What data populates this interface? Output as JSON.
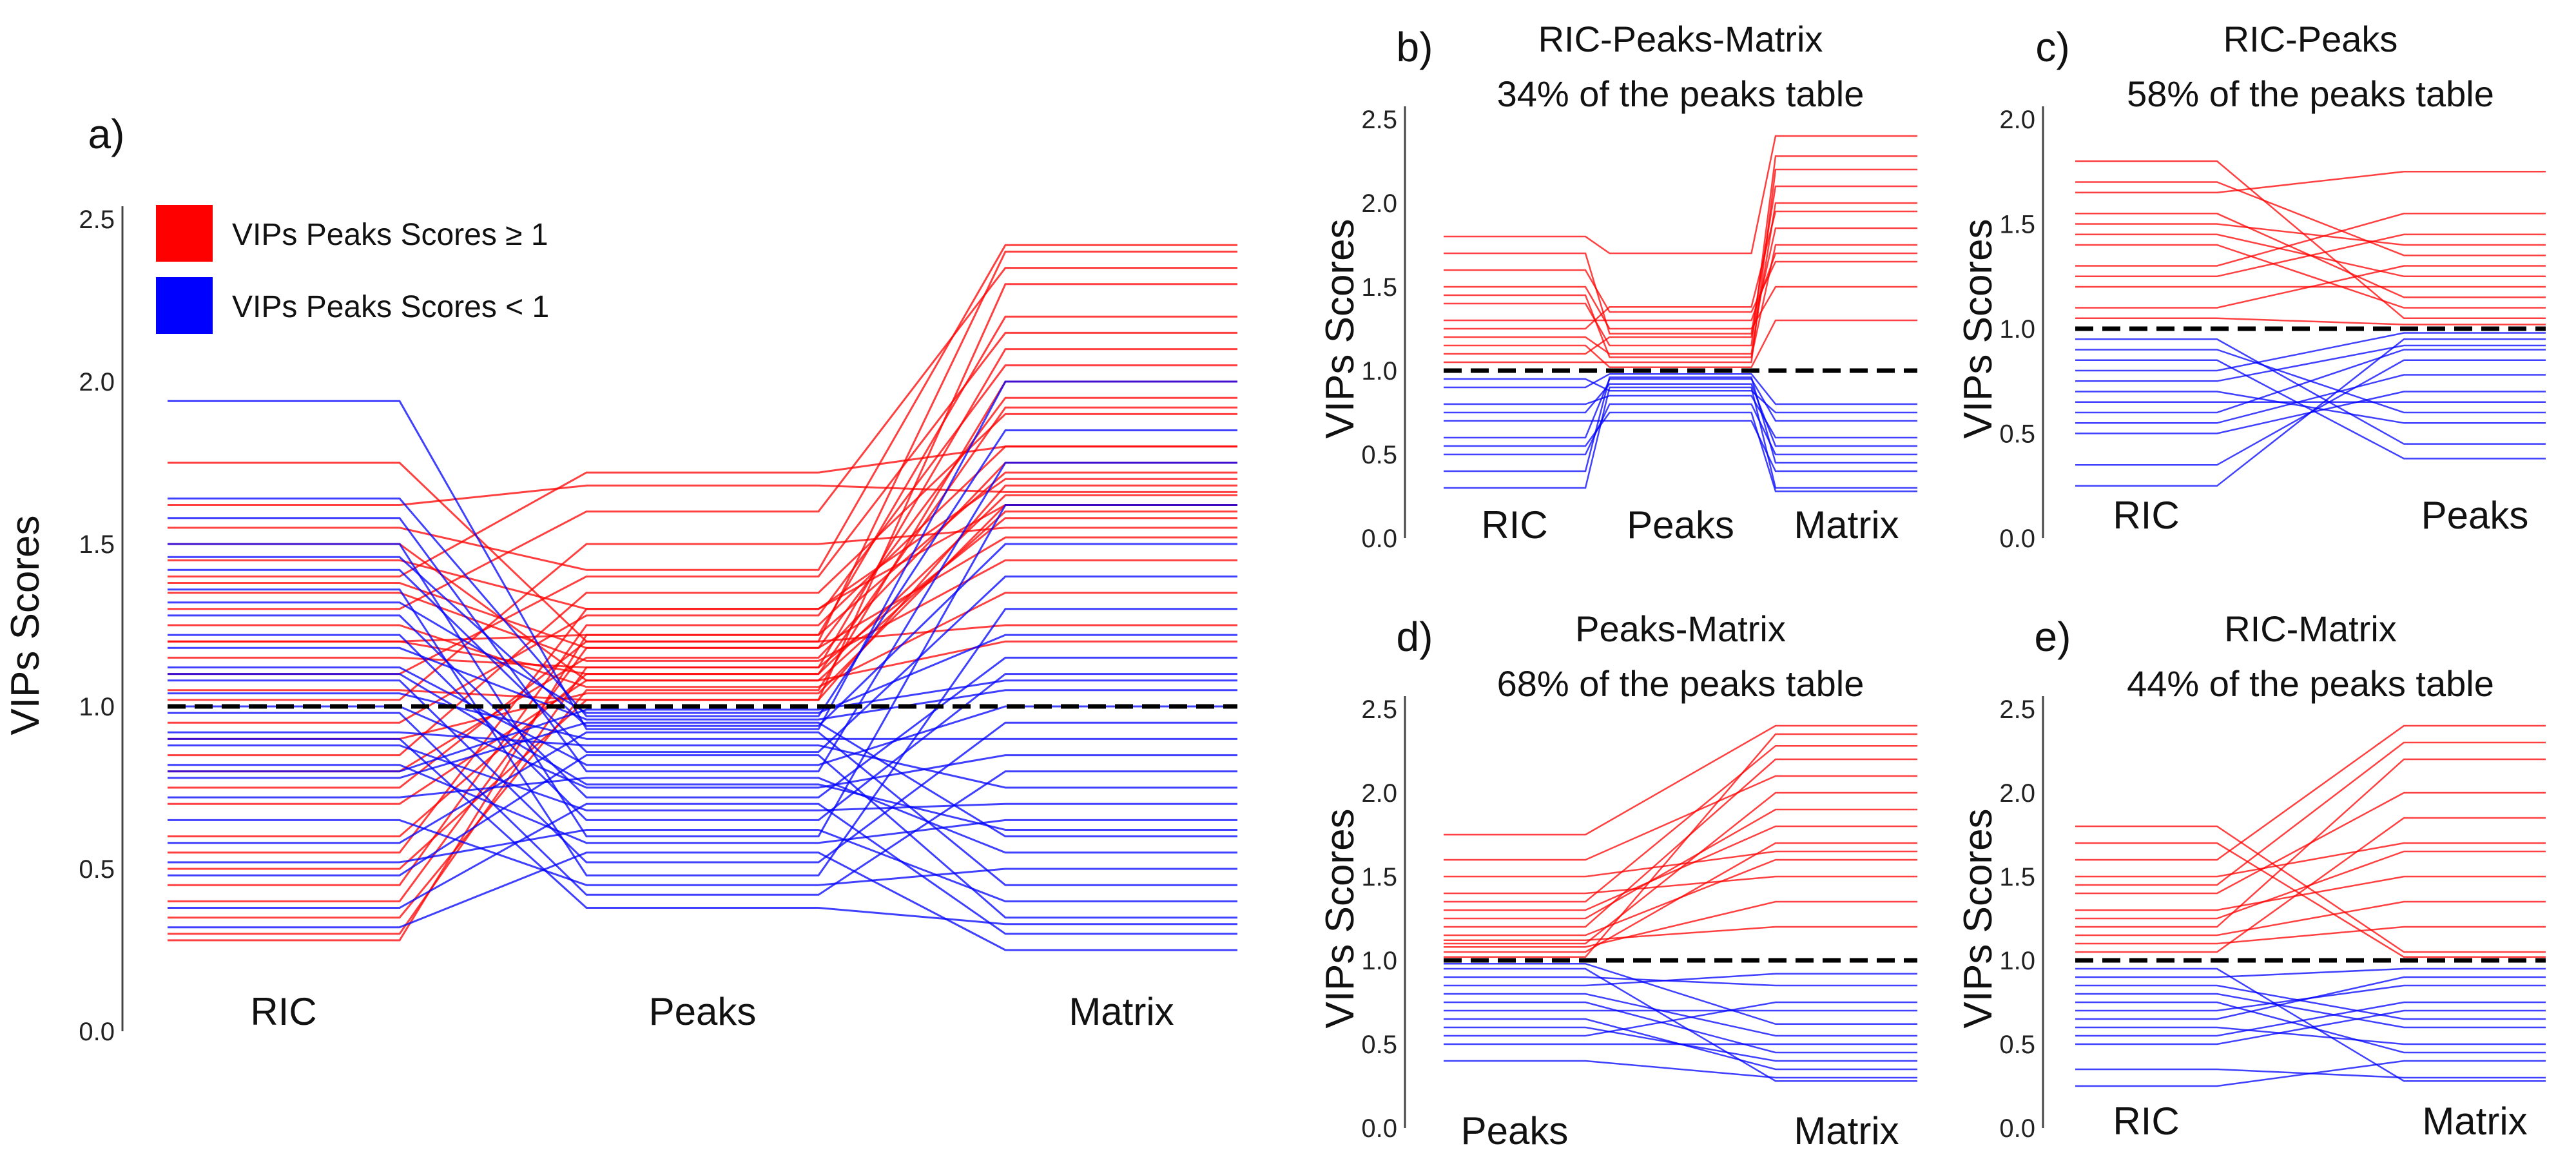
{
  "colors": {
    "high": "#ff0000",
    "low": "#0000ff",
    "threshold_line": "#000000",
    "axis": "#444444"
  },
  "legend": {
    "high_label": "VIPs Peaks Scores ≥ 1",
    "low_label": "VIPs Peaks Scores < 1"
  },
  "chart_data": [
    {
      "id": "a",
      "panel_letter": "a)",
      "title": "",
      "subtitle": "",
      "type": "parallel-coordinates",
      "ylabel": "VIPs Scores",
      "ylim": [
        0,
        2.5
      ],
      "yticks": [
        "0.0",
        "0.5",
        "1.0",
        "1.5",
        "2.0",
        "2.5"
      ],
      "threshold": 1.0,
      "categories": [
        "RIC",
        "Peaks",
        "Matrix"
      ],
      "color_rule": "Peaks value >= 1 red, < 1 blue",
      "series": [
        {
          "values": [
            0.28,
            1.22,
            2.2
          ]
        },
        {
          "values": [
            0.3,
            1.12,
            2.1
          ]
        },
        {
          "values": [
            0.35,
            1.05,
            2.0
          ]
        },
        {
          "values": [
            0.4,
            1.18,
            1.95
          ]
        },
        {
          "values": [
            0.45,
            1.25,
            1.8
          ]
        },
        {
          "values": [
            0.5,
            1.02,
            2.3
          ]
        },
        {
          "values": [
            0.55,
            1.3,
            1.7
          ]
        },
        {
          "values": [
            0.6,
            1.1,
            1.65
          ]
        },
        {
          "values": [
            0.7,
            1.08,
            1.6
          ]
        },
        {
          "values": [
            0.75,
            1.2,
            2.4
          ]
        },
        {
          "values": [
            0.8,
            1.15,
            1.75
          ]
        },
        {
          "values": [
            0.85,
            1.35,
            1.9
          ]
        },
        {
          "values": [
            0.9,
            1.04,
            1.62
          ]
        },
        {
          "values": [
            0.95,
            1.28,
            2.05
          ]
        },
        {
          "values": [
            1.02,
            1.5,
            1.55
          ]
        },
        {
          "values": [
            1.05,
            1.02,
            1.68
          ]
        },
        {
          "values": [
            1.1,
            1.4,
            2.15
          ]
        },
        {
          "values": [
            1.15,
            1.12,
            1.58
          ]
        },
        {
          "values": [
            1.2,
            1.22,
            1.72
          ]
        },
        {
          "values": [
            1.25,
            1.06,
            1.35
          ]
        },
        {
          "values": [
            1.3,
            1.6,
            2.35
          ]
        },
        {
          "values": [
            1.35,
            1.14,
            1.45
          ]
        },
        {
          "values": [
            1.4,
            1.72,
            1.8
          ]
        },
        {
          "values": [
            1.45,
            1.3,
            1.62
          ]
        },
        {
          "values": [
            1.5,
            1.08,
            1.2
          ]
        },
        {
          "values": [
            1.55,
            1.42,
            2.42
          ]
        },
        {
          "values": [
            1.62,
            1.68,
            1.66
          ]
        },
        {
          "values": [
            1.75,
            1.2,
            1.25
          ]
        },
        {
          "values": [
            1.2,
            1.1,
            1.92
          ]
        },
        {
          "values": [
            1.38,
            1.18,
            1.52
          ]
        },
        {
          "values": [
            0.32,
            0.55,
            0.25
          ]
        },
        {
          "values": [
            0.38,
            0.7,
            0.3
          ]
        },
        {
          "values": [
            0.48,
            0.85,
            0.35
          ]
        },
        {
          "values": [
            0.52,
            0.62,
            0.4
          ]
        },
        {
          "values": [
            0.58,
            0.92,
            0.45
          ]
        },
        {
          "values": [
            0.65,
            0.45,
            0.5
          ]
        },
        {
          "values": [
            0.72,
            0.78,
            0.55
          ]
        },
        {
          "values": [
            0.78,
            0.95,
            0.6
          ]
        },
        {
          "values": [
            0.82,
            0.58,
            0.65
          ]
        },
        {
          "values": [
            0.88,
            0.68,
            0.7
          ]
        },
        {
          "values": [
            0.92,
            0.88,
            0.75
          ]
        },
        {
          "values": [
            0.98,
            0.42,
            0.8
          ]
        },
        {
          "values": [
            1.0,
            0.75,
            0.85
          ]
        },
        {
          "values": [
            1.04,
            0.9,
            0.9
          ]
        },
        {
          "values": [
            1.08,
            0.52,
            0.95
          ]
        },
        {
          "values": [
            1.12,
            0.82,
            1.0
          ]
        },
        {
          "values": [
            1.18,
            0.96,
            1.05
          ]
        },
        {
          "values": [
            1.22,
            0.65,
            1.1
          ]
        },
        {
          "values": [
            1.28,
            0.72,
            1.15
          ]
        },
        {
          "values": [
            1.32,
            0.98,
            1.22
          ]
        },
        {
          "values": [
            1.36,
            0.48,
            1.3
          ]
        },
        {
          "values": [
            1.42,
            0.86,
            1.4
          ]
        },
        {
          "values": [
            1.46,
            0.94,
            1.5
          ]
        },
        {
          "values": [
            1.5,
            0.6,
            1.62
          ]
        },
        {
          "values": [
            1.58,
            0.8,
            1.75
          ]
        },
        {
          "values": [
            1.64,
            0.97,
            1.85
          ]
        },
        {
          "values": [
            1.94,
            0.93,
            2.0
          ]
        },
        {
          "values": [
            0.8,
            0.99,
            1.08
          ]
        },
        {
          "values": [
            0.9,
            0.38,
            0.33
          ]
        },
        {
          "values": [
            1.1,
            0.76,
            0.62
          ]
        }
      ]
    },
    {
      "id": "b",
      "panel_letter": "b)",
      "title": "RIC-Peaks-Matrix",
      "subtitle": "34% of the peaks table",
      "type": "parallel-coordinates",
      "ylabel": "VIPs Scores",
      "ylim": [
        0,
        2.5
      ],
      "yticks": [
        "0.0",
        "0.5",
        "1.0",
        "1.5",
        "2.0",
        "2.5"
      ],
      "threshold": 1.0,
      "categories": [
        "RIC",
        "Peaks",
        "Matrix"
      ],
      "series": [
        {
          "values": [
            1.05,
            1.05,
            2.2
          ]
        },
        {
          "values": [
            1.1,
            1.2,
            1.85
          ]
        },
        {
          "values": [
            1.2,
            1.1,
            2.0
          ]
        },
        {
          "values": [
            1.3,
            1.3,
            1.7
          ]
        },
        {
          "values": [
            1.4,
            1.15,
            2.28
          ]
        },
        {
          "values": [
            1.5,
            1.25,
            1.5
          ]
        },
        {
          "values": [
            1.6,
            1.35,
            1.65
          ]
        },
        {
          "values": [
            1.8,
            1.7,
            2.4
          ]
        },
        {
          "values": [
            1.15,
            1.02,
            1.3
          ]
        },
        {
          "values": [
            1.25,
            1.38,
            1.95
          ]
        },
        {
          "values": [
            1.45,
            1.08,
            1.75
          ]
        },
        {
          "values": [
            1.7,
            1.22,
            2.1
          ]
        },
        {
          "values": [
            0.3,
            0.9,
            0.3
          ]
        },
        {
          "values": [
            0.5,
            0.8,
            0.5
          ]
        },
        {
          "values": [
            0.6,
            0.95,
            0.7
          ]
        },
        {
          "values": [
            0.7,
            0.7,
            0.4
          ]
        },
        {
          "values": [
            0.8,
            0.85,
            0.6
          ]
        },
        {
          "values": [
            0.9,
            0.98,
            0.8
          ]
        },
        {
          "values": [
            0.55,
            0.75,
            0.28
          ]
        },
        {
          "values": [
            0.75,
            0.92,
            0.55
          ]
        },
        {
          "values": [
            0.95,
            0.88,
            0.75
          ]
        },
        {
          "values": [
            0.4,
            0.96,
            0.45
          ]
        }
      ]
    },
    {
      "id": "c",
      "panel_letter": "c)",
      "title": "RIC-Peaks",
      "subtitle": "58% of the peaks table",
      "type": "parallel-coordinates",
      "ylabel": "VIPs Scores",
      "ylim": [
        0,
        2.0
      ],
      "yticks": [
        "0.0",
        "0.5",
        "1.0",
        "1.5",
        "2.0"
      ],
      "threshold": 1.0,
      "categories": [
        "RIC",
        "Peaks"
      ],
      "series": [
        {
          "values": [
            1.8,
            1.05
          ]
        },
        {
          "values": [
            1.65,
            1.75
          ]
        },
        {
          "values": [
            1.5,
            1.4
          ]
        },
        {
          "values": [
            1.4,
            1.1
          ]
        },
        {
          "values": [
            1.3,
            1.55
          ]
        },
        {
          "values": [
            1.2,
            1.2
          ]
        },
        {
          "values": [
            1.1,
            1.3
          ]
        },
        {
          "values": [
            1.05,
            1.02
          ]
        },
        {
          "values": [
            1.55,
            1.15
          ]
        },
        {
          "values": [
            1.25,
            1.45
          ]
        },
        {
          "values": [
            1.45,
            1.25
          ]
        },
        {
          "values": [
            1.7,
            1.35
          ]
        },
        {
          "values": [
            0.25,
            0.95
          ]
        },
        {
          "values": [
            0.35,
            0.85
          ]
        },
        {
          "values": [
            0.5,
            0.7
          ]
        },
        {
          "values": [
            0.6,
            0.9
          ]
        },
        {
          "values": [
            0.7,
            0.55
          ]
        },
        {
          "values": [
            0.8,
            0.98
          ]
        },
        {
          "values": [
            0.9,
            0.6
          ]
        },
        {
          "values": [
            0.95,
            0.45
          ]
        },
        {
          "values": [
            0.55,
            0.78
          ]
        },
        {
          "values": [
            0.75,
            0.92
          ]
        },
        {
          "values": [
            0.85,
            0.38
          ]
        },
        {
          "values": [
            0.65,
            0.65
          ]
        }
      ]
    },
    {
      "id": "d",
      "panel_letter": "d)",
      "title": "Peaks-Matrix",
      "subtitle": "68% of the peaks table",
      "type": "parallel-coordinates",
      "ylabel": "VIPs Scores",
      "ylim": [
        0,
        2.5
      ],
      "yticks": [
        "0.0",
        "0.5",
        "1.0",
        "1.5",
        "2.0",
        "2.5"
      ],
      "threshold": 1.0,
      "categories": [
        "Peaks",
        "Matrix"
      ],
      "series": [
        {
          "values": [
            1.02,
            2.35
          ]
        },
        {
          "values": [
            1.05,
            1.7
          ]
        },
        {
          "values": [
            1.1,
            2.0
          ]
        },
        {
          "values": [
            1.15,
            1.6
          ]
        },
        {
          "values": [
            1.2,
            2.2
          ]
        },
        {
          "values": [
            1.3,
            1.8
          ]
        },
        {
          "values": [
            1.4,
            1.5
          ]
        },
        {
          "values": [
            1.6,
            2.1
          ]
        },
        {
          "values": [
            1.75,
            2.4
          ]
        },
        {
          "values": [
            1.08,
            1.35
          ]
        },
        {
          "values": [
            1.25,
            1.9
          ]
        },
        {
          "values": [
            1.5,
            1.65
          ]
        },
        {
          "values": [
            1.12,
            1.2
          ]
        },
        {
          "values": [
            1.35,
            2.28
          ]
        },
        {
          "values": [
            0.4,
            0.3
          ]
        },
        {
          "values": [
            0.5,
            0.5
          ]
        },
        {
          "values": [
            0.6,
            0.4
          ]
        },
        {
          "values": [
            0.7,
            0.7
          ]
        },
        {
          "values": [
            0.8,
            0.55
          ]
        },
        {
          "values": [
            0.9,
            0.85
          ]
        },
        {
          "values": [
            0.95,
            0.28
          ]
        },
        {
          "values": [
            0.98,
            0.62
          ]
        },
        {
          "values": [
            0.55,
            0.75
          ]
        },
        {
          "values": [
            0.75,
            0.45
          ]
        },
        {
          "values": [
            0.85,
            0.92
          ]
        },
        {
          "values": [
            0.65,
            0.35
          ]
        }
      ]
    },
    {
      "id": "e",
      "panel_letter": "e)",
      "title": "RIC-Matrix",
      "subtitle": "44% of the peaks table",
      "type": "parallel-coordinates",
      "ylabel": "VIPs Scores",
      "ylim": [
        0,
        2.5
      ],
      "yticks": [
        "0.0",
        "0.5",
        "1.0",
        "1.5",
        "2.0",
        "2.5"
      ],
      "threshold": 1.0,
      "categories": [
        "RIC",
        "Matrix"
      ],
      "series": [
        {
          "values": [
            1.8,
            1.05
          ]
        },
        {
          "values": [
            1.6,
            2.4
          ]
        },
        {
          "values": [
            1.5,
            1.7
          ]
        },
        {
          "values": [
            1.4,
            2.0
          ]
        },
        {
          "values": [
            1.3,
            1.5
          ]
        },
        {
          "values": [
            1.2,
            2.2
          ]
        },
        {
          "values": [
            1.1,
            1.2
          ]
        },
        {
          "values": [
            1.05,
            1.85
          ]
        },
        {
          "values": [
            1.7,
            1.02
          ]
        },
        {
          "values": [
            1.25,
            1.65
          ]
        },
        {
          "values": [
            1.45,
            2.3
          ]
        },
        {
          "values": [
            1.15,
            1.35
          ]
        },
        {
          "values": [
            0.25,
            0.4
          ]
        },
        {
          "values": [
            0.35,
            0.3
          ]
        },
        {
          "values": [
            0.5,
            0.7
          ]
        },
        {
          "values": [
            0.6,
            0.5
          ]
        },
        {
          "values": [
            0.7,
            0.85
          ]
        },
        {
          "values": [
            0.8,
            0.6
          ]
        },
        {
          "values": [
            0.9,
            0.95
          ]
        },
        {
          "values": [
            0.95,
            0.28
          ]
        },
        {
          "values": [
            0.55,
            0.75
          ]
        },
        {
          "values": [
            0.75,
            0.45
          ]
        },
        {
          "values": [
            0.85,
            0.65
          ]
        },
        {
          "values": [
            0.65,
            0.9
          ]
        }
      ]
    }
  ]
}
